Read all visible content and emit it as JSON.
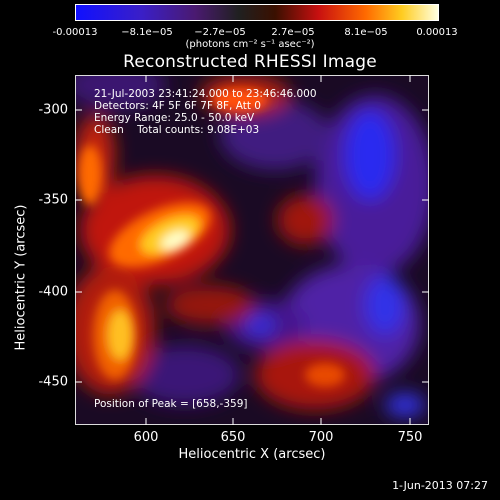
{
  "colorbar": {
    "ticks": [
      "-0.00013",
      "−8.1e−05",
      "−2.7e−05",
      "2.7e−05",
      "8.1e−05",
      "0.00013"
    ],
    "units": "(photons cm⁻² s⁻¹ asec⁻²)"
  },
  "chart_data": {
    "type": "heatmap",
    "title": "Reconstructed RHESSI Image",
    "xlabel": "Heliocentric X (arcsec)",
    "ylabel": "Heliocentric Y (arcsec)",
    "xlim": [
      562,
      756
    ],
    "ylim": [
      -472,
      -280
    ],
    "x_ticks": [
      "600",
      "650",
      "700",
      "750"
    ],
    "y_ticks": [
      "-300",
      "-350",
      "-400",
      "-450"
    ],
    "colorbar_range": [
      -0.00013,
      0.00013
    ],
    "peak_position": [
      658,
      -359
    ],
    "annotations": {
      "time_range": "21-Jul-2003 23:41:24.000 to 23:46:46.000",
      "detectors": "Detectors: 4F 5F 6F 7F 8F, Att 0",
      "energy_range": "Energy Range: 25.0 - 50.0 keV",
      "method": "Clean    Total counts: 9.08E+03",
      "peak": "Position of Peak = [658,-359]"
    }
  },
  "footer": "1-Jun-2013 07:27",
  "colors": {
    "background": "#000000",
    "text": "#ffffff"
  }
}
